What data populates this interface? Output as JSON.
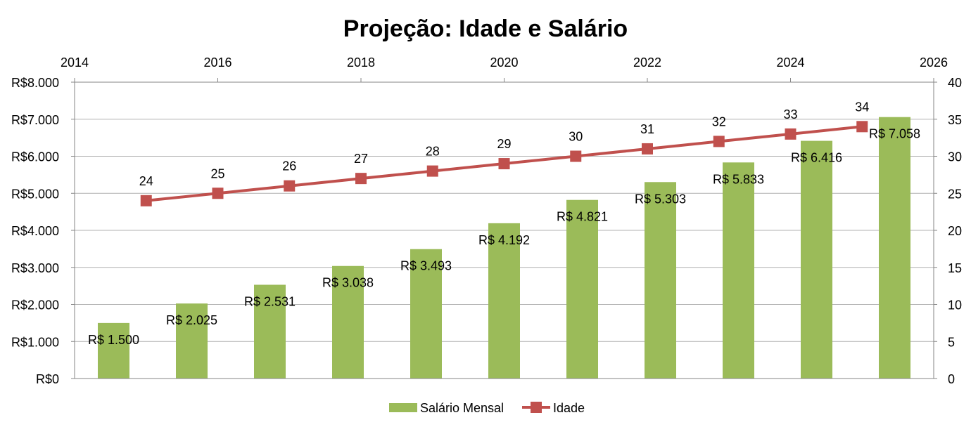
{
  "chart_data": {
    "type": "bar+line",
    "title": "Projeção: Idade e Salário",
    "colors": {
      "bar": "#9BBB59",
      "line": "#C0504D"
    },
    "primary_axis": {
      "ylim": [
        0,
        8000
      ],
      "step": 1000,
      "tick_labels": [
        "R$0",
        "R$1.000",
        "R$2.000",
        "R$3.000",
        "R$4.000",
        "R$5.000",
        "R$6.000",
        "R$7.000",
        "R$8.000"
      ]
    },
    "secondary_axis": {
      "ylim": [
        0,
        40
      ],
      "step": 5,
      "tick_labels": [
        "0",
        "5",
        "10",
        "15",
        "20",
        "25",
        "30",
        "35",
        "40"
      ]
    },
    "top_axis": {
      "xlim": [
        2014,
        2026
      ],
      "tick_labels": [
        "2014",
        "2016",
        "2018",
        "2020",
        "2022",
        "2024",
        "2026"
      ]
    },
    "series": [
      {
        "name": "Salário Mensal",
        "type": "bar",
        "values": [
          1500,
          2025,
          2531,
          3038,
          3493,
          4192,
          4821,
          5303,
          5833,
          6416,
          7058
        ],
        "labels": [
          "R$ 1.500",
          "R$ 2.025",
          "R$ 2.531",
          "R$ 3.038",
          "R$ 3.493",
          "R$ 4.192",
          "R$ 4.821",
          "R$ 5.303",
          "R$ 5.833",
          "R$ 6.416",
          "R$ 7.058"
        ]
      },
      {
        "name": "Idade",
        "type": "line",
        "x": [
          2015,
          2016,
          2017,
          2018,
          2019,
          2020,
          2021,
          2022,
          2023,
          2024,
          2025
        ],
        "values": [
          24,
          25,
          26,
          27,
          28,
          29,
          30,
          31,
          32,
          33,
          34
        ],
        "labels": [
          "24",
          "25",
          "26",
          "27",
          "28",
          "29",
          "30",
          "31",
          "32",
          "33",
          "34"
        ]
      }
    ],
    "legend": {
      "position": "bottom",
      "items": [
        "Salário Mensal",
        "Idade"
      ]
    }
  }
}
